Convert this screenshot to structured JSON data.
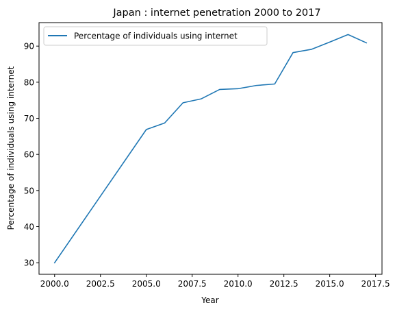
{
  "chart_data": {
    "type": "line",
    "title": "Japan : internet penetration 2000 to 2017",
    "xlabel": "Year",
    "ylabel": "Percentage of individuals using internet",
    "xlim": [
      1999.15,
      2017.85
    ],
    "ylim": [
      26.8,
      96.5
    ],
    "xticks": [
      2000,
      2002.5,
      2005,
      2007.5,
      2010,
      2012.5,
      2015,
      2017.5
    ],
    "xtick_labels": [
      "2000.0",
      "2002.5",
      "2005.0",
      "2007.5",
      "2010.0",
      "2012.5",
      "2015.0",
      "2017.5"
    ],
    "yticks": [
      30,
      40,
      50,
      60,
      70,
      80,
      90
    ],
    "ytick_labels": [
      "30",
      "40",
      "50",
      "60",
      "70",
      "80",
      "90"
    ],
    "grid": false,
    "legend_position": "upper-left",
    "series": [
      {
        "name": "Percentage of individuals using internet",
        "color": "#1f77b4",
        "x": [
          2000,
          2005,
          2006,
          2007,
          2008,
          2009,
          2010,
          2011,
          2012,
          2013,
          2014,
          2015,
          2016,
          2017
        ],
        "y": [
          30.0,
          66.9,
          68.7,
          74.3,
          75.4,
          78.0,
          78.2,
          79.1,
          79.5,
          88.2,
          89.1,
          91.1,
          93.2,
          90.9
        ]
      }
    ]
  }
}
